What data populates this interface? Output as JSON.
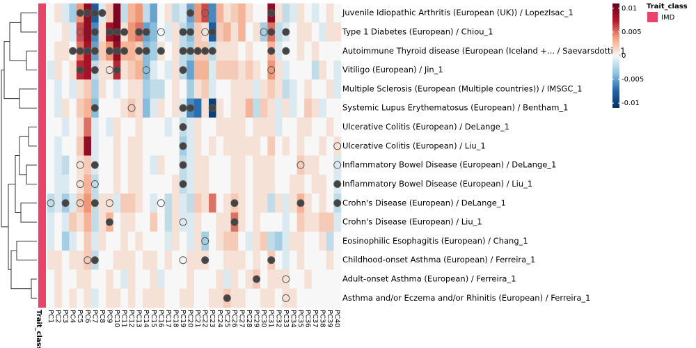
{
  "chart_data": {
    "type": "heatmap",
    "x": [
      "PC1",
      "PC2",
      "PC3",
      "PC4",
      "PC5",
      "PC6",
      "PC7",
      "PC8",
      "PC9",
      "PC10",
      "PC11",
      "PC12",
      "PC13",
      "PC14",
      "PC15",
      "PC16",
      "PC17",
      "PC18",
      "PC19",
      "PC20",
      "PC21",
      "PC22",
      "PC23",
      "PC24",
      "PC25",
      "PC26",
      "PC27",
      "PC28",
      "PC29",
      "PC30",
      "PC31",
      "PC32",
      "PC33",
      "PC34",
      "PC35",
      "PC36",
      "PC37",
      "PC38",
      "PC39",
      "PC40"
    ],
    "y": [
      "Juvenile Idiopathic Arthritis (European (UK)) / LopezIsac_1",
      "Type 1 Diabetes (European) / Chiou_1",
      "Autoimmune Thyroid disease (European (Iceland +... / Saevarsdottir_1",
      "Vitiligo (European) / Jin_1",
      "Multiple Sclerosis (European (Multiple countries)) / IMSGC_1",
      "Systemic Lupus Erythematosus (European) / Bentham_1",
      "Ulcerative Colitis (European) / DeLange_1",
      "Ulcerative Colitis (European) / Liu_1",
      "Inflammatory Bowel Disease (European) / DeLange_1",
      "Inflammatory Bowel Disease (European) / Liu_1",
      "Crohn's Disease (European) / DeLange_1",
      "Crohn's Disease (European) / Liu_1",
      "Eosinophilic Esophagitis (European) / Chang_1",
      "Childhood-onset Asthma (European) / Ferreira_1",
      "Adult-onset Asthma (European) / Ferreira_1",
      "Asthma and/or Eczema and/or Rhinitis (European) / Ferreira_1"
    ],
    "values": [
      [
        0,
        0.001,
        -0.001,
        -0.003,
        0.004,
        0.009,
        -0.008,
        -0.001,
        0.002,
        0.01,
        -0.002,
        0.003,
        0.004,
        -0.002,
        -0.005,
        0,
        0.001,
        -0.002,
        -0.001,
        -0.005,
        0.004,
        0.006,
        -0.006,
        0.003,
        0.001,
        0.002,
        0.003,
        0.001,
        0,
        0,
        0.009,
        0.001,
        -0.002,
        -0.001,
        0.001,
        0,
        -0.001,
        0,
        0.001,
        0
      ],
      [
        0,
        0,
        0.001,
        -0.001,
        0.006,
        0.009,
        -0.006,
        0.001,
        0.008,
        0.01,
        0.001,
        0.004,
        0.005,
        -0.005,
        -0.004,
        0,
        -0.001,
        0.001,
        -0.002,
        -0.004,
        0.002,
        0.001,
        -0.008,
        0.002,
        0.003,
        0.001,
        0.003,
        0,
        0.001,
        -0.003,
        0.005,
        -0.002,
        -0.001,
        0,
        0.001,
        0.001,
        0,
        -0.001,
        0.001,
        0.001
      ],
      [
        0,
        0.001,
        0.001,
        0,
        0.005,
        0.008,
        -0.005,
        0.002,
        0.004,
        0.009,
        0.003,
        0.003,
        0.002,
        -0.004,
        -0.003,
        0.001,
        0,
        0.001,
        -0.002,
        -0.003,
        0.002,
        0.002,
        -0.002,
        0.001,
        0.001,
        0.001,
        0,
        0.001,
        0,
        0,
        0.003,
        -0.001,
        0,
        0,
        0.001,
        0,
        0.001,
        0,
        0,
        0
      ],
      [
        -0.001,
        0.001,
        0,
        0.001,
        0.007,
        0.008,
        -0.002,
        0.001,
        0.001,
        0.007,
        0.001,
        0.002,
        0.003,
        -0.004,
        -0.001,
        0,
        -0.001,
        0.001,
        -0.002,
        -0.005,
        0.003,
        0.003,
        -0.001,
        0.002,
        0.002,
        0.002,
        0.001,
        0.002,
        0.001,
        0,
        0.004,
        0.001,
        -0.001,
        0,
        0,
        0,
        -0.002,
        0.001,
        0,
        -0.001
      ],
      [
        0,
        -0.001,
        0,
        -0.001,
        0.001,
        0.002,
        -0.003,
        0.001,
        0,
        -0.001,
        0,
        0.001,
        0.001,
        -0.003,
        -0.002,
        -0.002,
        0,
        0.001,
        0,
        -0.003,
        0.001,
        0.002,
        -0.001,
        0,
        0,
        0.001,
        0.001,
        0.001,
        -0.001,
        0.001,
        0.002,
        0.001,
        -0.002,
        -0.001,
        0,
        0.001,
        0,
        0,
        0.001,
        -0.001
      ],
      [
        0,
        -0.001,
        0.001,
        0,
        0.002,
        0.003,
        -0.004,
        0,
        0,
        0,
        0.001,
        0.002,
        0.001,
        -0.004,
        -0.001,
        0.001,
        0,
        0.001,
        -0.001,
        -0.006,
        -0.007,
        0.001,
        -0.01,
        0.001,
        0,
        0.001,
        0.001,
        0.003,
        -0.002,
        0.002,
        0.001,
        -0.001,
        0.001,
        -0.001,
        0,
        0.002,
        0.001,
        -0.001,
        0,
        0
      ],
      [
        0,
        0,
        -0.001,
        0,
        0.001,
        0.005,
        -0.001,
        0,
        -0.001,
        0.001,
        0,
        0,
        0.001,
        0,
        0,
        0,
        -0.001,
        0,
        -0.002,
        -0.001,
        0.001,
        0,
        0,
        0.001,
        0.001,
        0.001,
        0.001,
        0,
        0.001,
        0.001,
        0.001,
        -0.001,
        0,
        0,
        0.001,
        0.001,
        0,
        0,
        0.001,
        0
      ],
      [
        0,
        -0.001,
        0,
        0,
        0.002,
        0.009,
        -0.001,
        0,
        0,
        0.001,
        0,
        0.001,
        0.001,
        0,
        0,
        0,
        0,
        0,
        -0.003,
        -0.001,
        0.001,
        0,
        0.001,
        0,
        0.001,
        0.001,
        0.001,
        0.001,
        0.001,
        0,
        0.002,
        0,
        0.001,
        0,
        0.001,
        0,
        0,
        0.001,
        0,
        0.001
      ],
      [
        0,
        -0.001,
        -0.002,
        0,
        0.001,
        0.002,
        -0.001,
        0,
        0,
        0.001,
        0,
        0.001,
        0.001,
        0,
        -0.001,
        0.001,
        0,
        0,
        -0.002,
        -0.001,
        0.001,
        0.001,
        0,
        0,
        0,
        0.001,
        0.001,
        0,
        0.001,
        0.001,
        0.001,
        0,
        0,
        0,
        0.002,
        0.001,
        0.001,
        0,
        0,
        -0.001
      ],
      [
        0,
        -0.001,
        -0.001,
        0,
        0.001,
        0.003,
        -0.002,
        0,
        0,
        0.001,
        0,
        0.001,
        0.001,
        0,
        0,
        0,
        0,
        0.001,
        -0.002,
        -0.001,
        0.001,
        0.001,
        0,
        0,
        0,
        0.001,
        0.001,
        0,
        0.001,
        0.001,
        0.001,
        0,
        0,
        0.001,
        0.001,
        0,
        0.001,
        0.001,
        0,
        -0.001
      ],
      [
        -0.002,
        -0.001,
        -0.003,
        -0.001,
        0.002,
        0.004,
        -0.002,
        0.001,
        0.001,
        -0.001,
        0.002,
        0.002,
        0.001,
        0,
        -0.001,
        0,
        -0.002,
        0.001,
        -0.001,
        -0.002,
        0.002,
        0.001,
        0.005,
        0,
        0.001,
        0.002,
        0.001,
        0,
        0.001,
        0.001,
        -0.002,
        0.001,
        -0.001,
        0.001,
        0.003,
        0.001,
        0,
        0.001,
        0,
        -0.002
      ],
      [
        -0.001,
        0,
        -0.001,
        0.002,
        0.001,
        0.003,
        -0.002,
        0.001,
        0.003,
        0,
        0.001,
        0.001,
        0,
        0,
        0.002,
        0,
        -0.002,
        0.001,
        -0.001,
        -0.001,
        0.001,
        0,
        0,
        0.001,
        0.001,
        0.005,
        0.001,
        0,
        0.001,
        0,
        0,
        0,
        -0.001,
        0,
        0.002,
        0.001,
        0.001,
        0.002,
        0.002,
        -0.001
      ],
      [
        -0.001,
        0,
        -0.003,
        -0.001,
        0,
        0.002,
        -0.001,
        0.001,
        0,
        0,
        0.001,
        0,
        0.001,
        0,
        0,
        0,
        -0.001,
        0.001,
        0,
        -0.001,
        0.001,
        -0.003,
        0,
        0.001,
        0.002,
        0.002,
        0,
        -0.001,
        0.001,
        0.002,
        -0.002,
        -0.003,
        -0.001,
        0.001,
        0.001,
        0,
        0,
        0.001,
        -0.002,
        0
      ],
      [
        0.001,
        0.001,
        0,
        0.001,
        0.001,
        0.002,
        -0.002,
        0,
        0,
        0.001,
        0.001,
        0.001,
        0,
        0.001,
        0.001,
        0,
        0.001,
        0,
        0,
        0.001,
        0.001,
        0.001,
        0,
        0,
        0.001,
        0.001,
        0.001,
        0,
        0.001,
        0,
        0.002,
        0,
        -0.001,
        0,
        0.001,
        0,
        0,
        0,
        0.001,
        0
      ],
      [
        0,
        0.001,
        0,
        0,
        0.001,
        0.001,
        0,
        0,
        0.001,
        0,
        -0.001,
        0.001,
        0,
        0,
        0.001,
        -0.001,
        0,
        0,
        0,
        0.001,
        0,
        0,
        0,
        0.001,
        -0.001,
        0.001,
        0,
        0.001,
        0.002,
        0,
        0.001,
        0.001,
        0.001,
        0,
        0,
        0.001,
        0,
        0,
        0,
        0
      ],
      [
        0,
        0.001,
        0,
        0.001,
        0,
        0.001,
        -0.001,
        0,
        0.001,
        0.001,
        0,
        0.001,
        0,
        0.001,
        0.001,
        0.001,
        0,
        0,
        0.001,
        0.001,
        0,
        0,
        0.001,
        0.001,
        0.002,
        0.001,
        0.001,
        0,
        0,
        0.001,
        0.001,
        0,
        0.001,
        0.001,
        0,
        0,
        0,
        0,
        0,
        0
      ]
    ],
    "filled_points": [
      [
        0,
        4
      ],
      [
        0,
        5
      ],
      [
        0,
        6
      ],
      [
        0,
        7
      ],
      [
        0,
        19
      ],
      [
        0,
        30
      ],
      [
        1,
        6
      ],
      [
        1,
        8
      ],
      [
        1,
        9
      ],
      [
        1,
        10
      ],
      [
        1,
        12
      ],
      [
        1,
        13
      ],
      [
        1,
        18
      ],
      [
        1,
        19
      ],
      [
        1,
        22
      ],
      [
        1,
        30
      ],
      [
        1,
        32
      ],
      [
        2,
        3
      ],
      [
        2,
        4
      ],
      [
        2,
        5
      ],
      [
        2,
        6
      ],
      [
        2,
        8
      ],
      [
        2,
        9
      ],
      [
        2,
        10
      ],
      [
        2,
        12
      ],
      [
        2,
        13
      ],
      [
        2,
        15
      ],
      [
        2,
        18
      ],
      [
        2,
        19
      ],
      [
        2,
        20
      ],
      [
        2,
        21
      ],
      [
        2,
        22
      ],
      [
        2,
        30
      ],
      [
        2,
        32
      ],
      [
        3,
        4
      ],
      [
        3,
        6
      ],
      [
        3,
        9
      ],
      [
        3,
        18
      ],
      [
        5,
        6
      ],
      [
        5,
        18
      ],
      [
        5,
        19
      ],
      [
        5,
        22
      ],
      [
        6,
        18
      ],
      [
        7,
        18
      ],
      [
        8,
        6
      ],
      [
        8,
        18
      ],
      [
        9,
        18
      ],
      [
        9,
        39
      ],
      [
        10,
        2
      ],
      [
        10,
        6
      ],
      [
        10,
        25
      ],
      [
        10,
        34
      ],
      [
        10,
        39
      ],
      [
        11,
        8
      ],
      [
        11,
        25
      ],
      [
        13,
        6
      ],
      [
        13,
        21
      ],
      [
        13,
        30
      ],
      [
        14,
        28
      ],
      [
        15,
        24
      ]
    ],
    "open_points": [
      [
        0,
        21
      ],
      [
        1,
        4
      ],
      [
        1,
        15
      ],
      [
        1,
        21
      ],
      [
        1,
        29
      ],
      [
        3,
        8
      ],
      [
        3,
        13
      ],
      [
        3,
        30
      ],
      [
        5,
        11
      ],
      [
        7,
        39
      ],
      [
        8,
        4
      ],
      [
        8,
        34
      ],
      [
        8,
        39
      ],
      [
        9,
        4
      ],
      [
        9,
        6
      ],
      [
        10,
        0
      ],
      [
        10,
        4
      ],
      [
        10,
        8
      ],
      [
        10,
        15
      ],
      [
        11,
        18
      ],
      [
        12,
        21
      ],
      [
        13,
        5
      ],
      [
        13,
        18
      ],
      [
        14,
        32
      ],
      [
        15,
        32
      ]
    ],
    "colors": [
      "#053061",
      "#2166ac",
      "#92c5de",
      "#f7f7f7",
      "#f4a582",
      "#b2182b",
      "#67001f"
    ],
    "clim": [
      -0.011,
      0.011
    ],
    "colorbar_ticks": [
      0.01,
      0.005,
      0,
      -0.005,
      -0.01
    ],
    "row_annotation": {
      "name": "Trait_class",
      "legend_title": "Trait_class",
      "levels": [
        "IMD"
      ],
      "color": "#e8436a"
    }
  }
}
